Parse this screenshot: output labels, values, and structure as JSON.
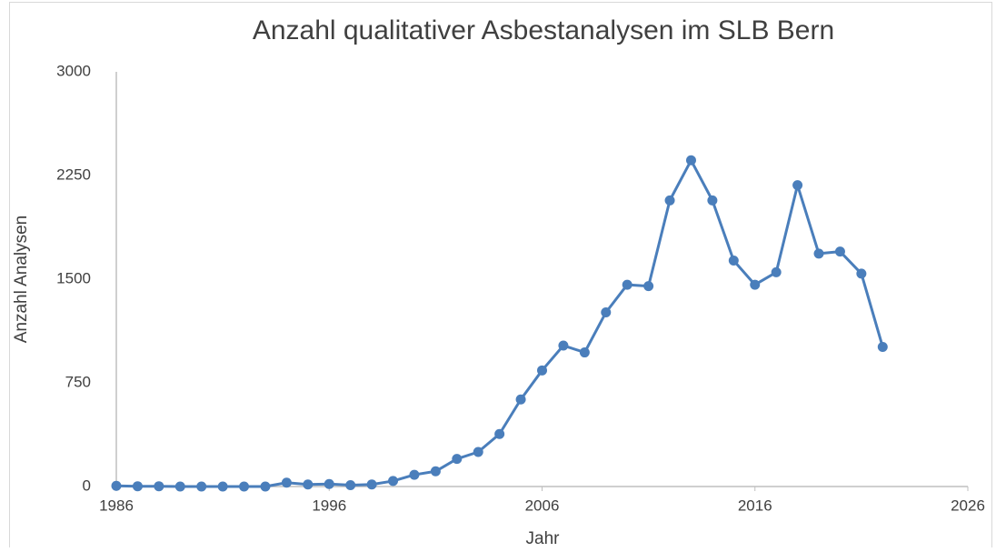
{
  "chart_data": {
    "type": "line",
    "title": "Anzahl qualitativer Asbestanalysen im SLB Bern",
    "xlabel": "Jahr",
    "ylabel": "Anzahl Analysen",
    "x": [
      1986,
      1987,
      1988,
      1989,
      1990,
      1991,
      1992,
      1993,
      1994,
      1995,
      1996,
      1997,
      1998,
      1999,
      2000,
      2001,
      2002,
      2003,
      2004,
      2005,
      2006,
      2007,
      2008,
      2009,
      2010,
      2011,
      2012,
      2013,
      2014,
      2015,
      2016,
      2017,
      2018,
      2019,
      2020,
      2021,
      2022
    ],
    "series": [
      {
        "name": "Anzahl Analysen",
        "color": "#4a7ebb",
        "values": [
          5,
          2,
          2,
          0,
          0,
          0,
          0,
          0,
          28,
          15,
          18,
          10,
          15,
          40,
          85,
          110,
          200,
          250,
          380,
          630,
          840,
          1020,
          970,
          1260,
          1460,
          1450,
          2070,
          2360,
          2070,
          1635,
          1460,
          1550,
          2180,
          1685,
          1700,
          1540,
          1010
        ]
      }
    ],
    "xlim": [
      1986,
      2026
    ],
    "xticks": [
      1986,
      1996,
      2006,
      2016,
      2026
    ],
    "ylim": [
      0,
      3000
    ],
    "yticks": [
      0,
      750,
      1500,
      2250,
      3000
    ],
    "grid": false
  }
}
